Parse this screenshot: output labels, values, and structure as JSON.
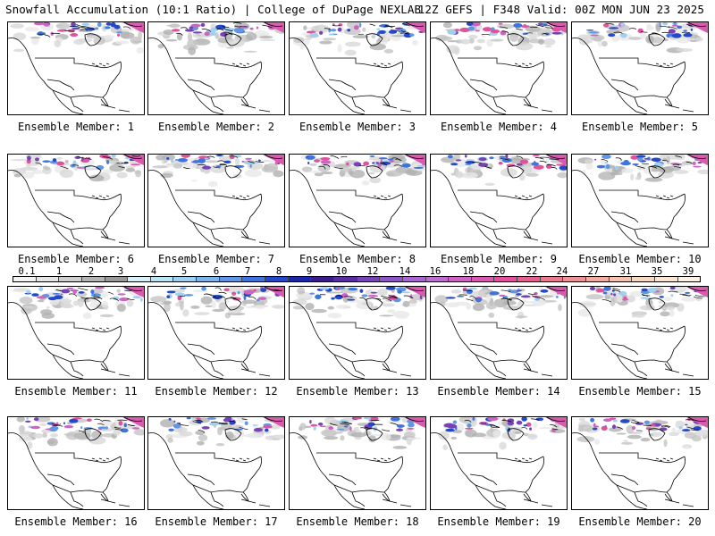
{
  "header": {
    "left": "Snowfall Accumulation (10:1 Ratio) | College of DuPage NEXLAB",
    "right": "12Z GEFS | F348 Valid: 00Z MON JUN 23 2025"
  },
  "legend": {
    "labels": [
      "0.1",
      "1",
      "2",
      "3",
      "4",
      "5",
      "6",
      "7",
      "8",
      "9",
      "10",
      "12",
      "14",
      "16",
      "18",
      "20",
      "22",
      "24",
      "27",
      "31",
      "35",
      "39"
    ],
    "colors": [
      "#f4f4f4",
      "#e6e6e6",
      "#cfcfcf",
      "#b4b4b4",
      "#9a9a9a",
      "#d8f0f8",
      "#b9e5f4",
      "#9fd0ef",
      "#7db4ea",
      "#5f97e4",
      "#3f74dc",
      "#2349c8",
      "#1a28a8",
      "#3a1c8a",
      "#5a2ea3",
      "#7642b5",
      "#8f55c4",
      "#a866cf",
      "#bd6fd0",
      "#cd64c2",
      "#d85bb0",
      "#e0529c",
      "#e5608f",
      "#ea7a8d",
      "#ee9395",
      "#f2ad9e",
      "#f5c4ad",
      "#f8d8c0",
      "#fae6d3",
      "#fcf2e6"
    ]
  },
  "members": [
    {
      "label": "Ensemble Member: 1"
    },
    {
      "label": "Ensemble Member: 2"
    },
    {
      "label": "Ensemble Member: 3"
    },
    {
      "label": "Ensemble Member: 4"
    },
    {
      "label": "Ensemble Member: 5"
    },
    {
      "label": "Ensemble Member: 6"
    },
    {
      "label": "Ensemble Member: 7"
    },
    {
      "label": "Ensemble Member: 8"
    },
    {
      "label": "Ensemble Member: 9"
    },
    {
      "label": "Ensemble Member: 10"
    },
    {
      "label": "Ensemble Member: 11"
    },
    {
      "label": "Ensemble Member: 12"
    },
    {
      "label": "Ensemble Member: 13"
    },
    {
      "label": "Ensemble Member: 14"
    },
    {
      "label": "Ensemble Member: 15"
    },
    {
      "label": "Ensemble Member: 16"
    },
    {
      "label": "Ensemble Member: 17"
    },
    {
      "label": "Ensemble Member: 18"
    },
    {
      "label": "Ensemble Member: 19"
    },
    {
      "label": "Ensemble Member: 20"
    }
  ]
}
